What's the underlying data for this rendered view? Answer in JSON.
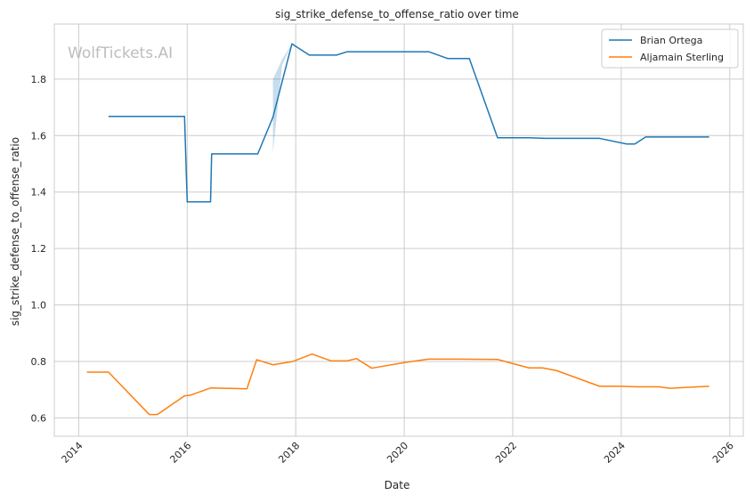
{
  "chart_data": {
    "type": "line",
    "title": "sig_strike_defense_to_offense_ratio over time",
    "xlabel": "Date",
    "ylabel": "sig_strike_defense_to_offense_ratio",
    "watermark": "WolfTickets.AI",
    "xlim": [
      2013.55,
      2026.25
    ],
    "ylim": [
      0.535,
      1.995
    ],
    "x_ticks": [
      2014,
      2016,
      2018,
      2020,
      2022,
      2024,
      2026
    ],
    "x_tick_labels": [
      "2014",
      "2016",
      "2018",
      "2020",
      "2022",
      "2024",
      "2026"
    ],
    "y_ticks": [
      0.6,
      0.8,
      1.0,
      1.2,
      1.4,
      1.6,
      1.8
    ],
    "y_tick_labels": [
      "0.6",
      "0.8",
      "1.0",
      "1.2",
      "1.4",
      "1.6",
      "1.8"
    ],
    "grid": true,
    "legend_position": "top-right",
    "series": [
      {
        "name": "Brian Ortega",
        "color": "#1f77b4",
        "points": [
          [
            2014.55,
            1.668
          ],
          [
            2015.95,
            1.668
          ],
          [
            2016.0,
            1.365
          ],
          [
            2016.43,
            1.365
          ],
          [
            2016.45,
            1.535
          ],
          [
            2017.3,
            1.535
          ],
          [
            2017.58,
            1.665
          ],
          [
            2017.93,
            1.925
          ],
          [
            2018.25,
            1.885
          ],
          [
            2018.75,
            1.885
          ],
          [
            2018.95,
            1.897
          ],
          [
            2020.45,
            1.897
          ],
          [
            2020.8,
            1.873
          ],
          [
            2021.2,
            1.873
          ],
          [
            2021.72,
            1.592
          ],
          [
            2022.3,
            1.592
          ],
          [
            2022.6,
            1.59
          ],
          [
            2023.6,
            1.59
          ],
          [
            2024.1,
            1.57
          ],
          [
            2024.25,
            1.57
          ],
          [
            2024.45,
            1.595
          ],
          [
            2025.62,
            1.595
          ]
        ],
        "confidence_band": [
          [
            2017.58,
            1.54,
            1.8
          ],
          [
            2017.75,
            1.85,
            1.87
          ],
          [
            2017.93,
            1.925,
            1.925
          ]
        ]
      },
      {
        "name": "Aljamain Sterling",
        "color": "#ff7f0e",
        "points": [
          [
            2014.15,
            0.762
          ],
          [
            2014.55,
            0.762
          ],
          [
            2015.3,
            0.612
          ],
          [
            2015.45,
            0.612
          ],
          [
            2015.95,
            0.678
          ],
          [
            2016.05,
            0.68
          ],
          [
            2016.43,
            0.706
          ],
          [
            2017.1,
            0.703
          ],
          [
            2017.28,
            0.806
          ],
          [
            2017.58,
            0.788
          ],
          [
            2017.95,
            0.8
          ],
          [
            2018.3,
            0.826
          ],
          [
            2018.65,
            0.802
          ],
          [
            2018.95,
            0.802
          ],
          [
            2019.12,
            0.81
          ],
          [
            2019.4,
            0.776
          ],
          [
            2020.0,
            0.796
          ],
          [
            2020.45,
            0.808
          ],
          [
            2021.0,
            0.808
          ],
          [
            2021.72,
            0.807
          ],
          [
            2022.3,
            0.777
          ],
          [
            2022.55,
            0.777
          ],
          [
            2022.8,
            0.768
          ],
          [
            2023.6,
            0.712
          ],
          [
            2024.0,
            0.712
          ],
          [
            2024.3,
            0.71
          ],
          [
            2024.7,
            0.71
          ],
          [
            2024.9,
            0.705
          ],
          [
            2025.62,
            0.712
          ]
        ]
      }
    ]
  }
}
